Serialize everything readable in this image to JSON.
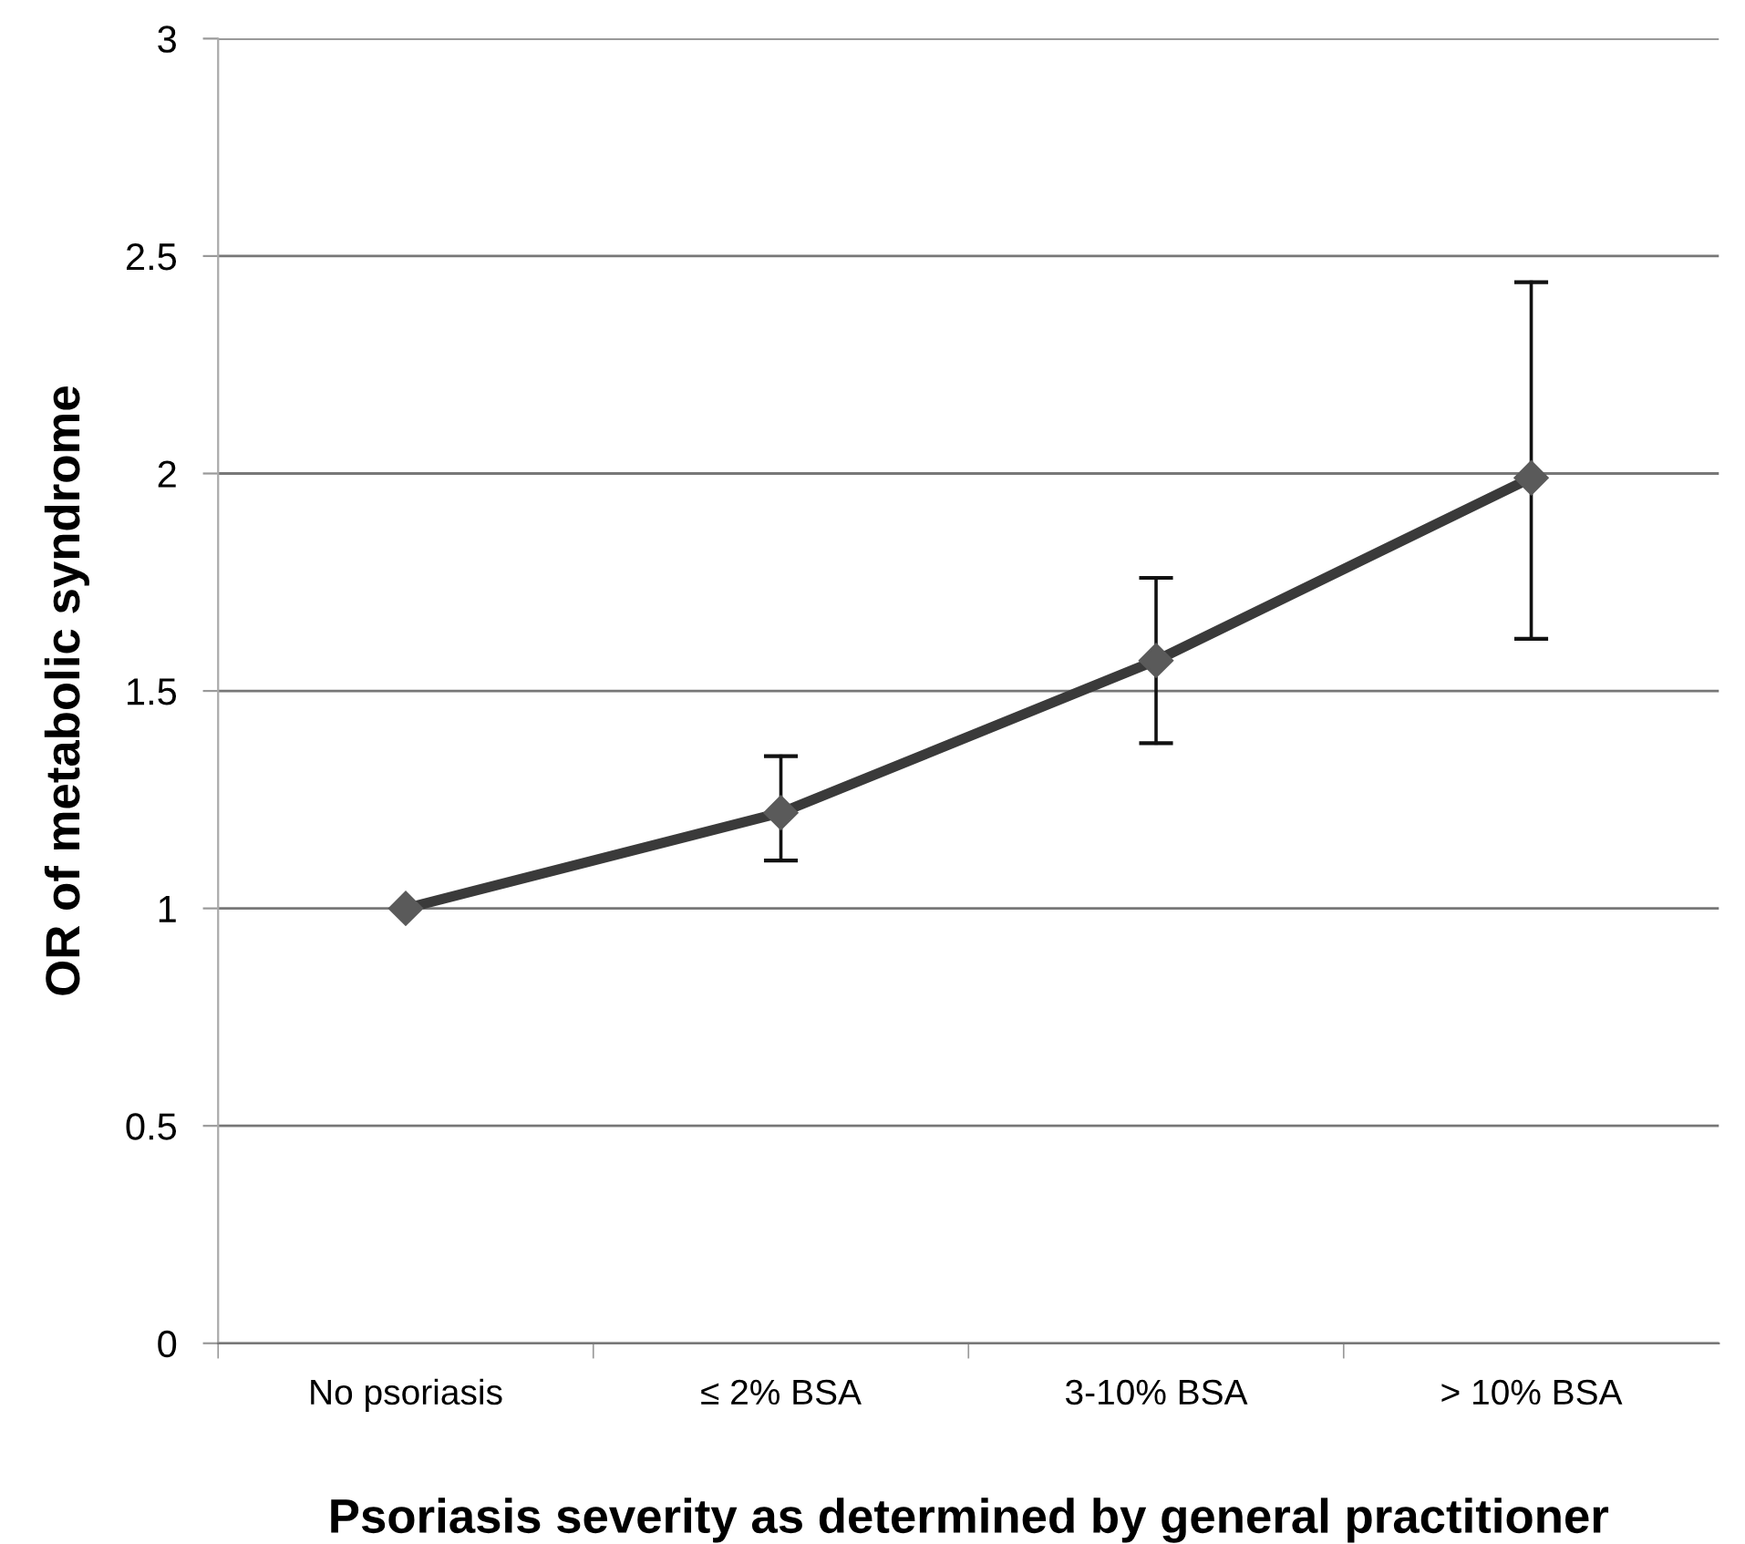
{
  "chart_data": {
    "type": "line",
    "xlabel": "Psoriasis severity as determined by general practitioner",
    "ylabel": "OR of metabolic syndrome",
    "categories": [
      "No psoriasis",
      "≤ 2% BSA",
      "3-10% BSA",
      "> 10% BSA"
    ],
    "series": [
      {
        "color": "#3a3a3a",
        "values": [
          1,
          1.22,
          1.57,
          1.99
        ],
        "errors": [
          null,
          [
            1.11,
            1.35
          ],
          [
            1.38,
            1.76
          ],
          [
            1.62,
            2.44
          ]
        ]
      }
    ],
    "ylim": [
      0,
      3
    ],
    "yticks": [
      0,
      0.5,
      1,
      1.5,
      2,
      2.5,
      3
    ],
    "grid": "y",
    "marker": "diamond",
    "line_style": "solid"
  }
}
